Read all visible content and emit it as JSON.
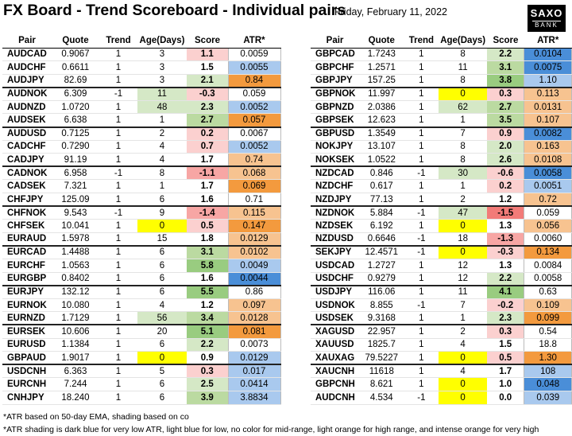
{
  "header": {
    "title": "FX Board - Trend Scoreboard - Individual pairs",
    "date": "Friday, February 11, 2022",
    "logo_line1": "SAXO",
    "logo_line2": "BANK"
  },
  "columns": [
    "Pair",
    "Quote",
    "Trend",
    "Age(Days)",
    "Score",
    "ATR*"
  ],
  "colors": {
    "age_green": "#d5e8c6",
    "age_yellow": "#ffff00",
    "score_green_light": "#d5e8c6",
    "score_green_mid": "#bbdaa1",
    "score_green_strong": "#99cc80",
    "score_red_light": "#fbd0cf",
    "score_red_mid": "#f7a6a4",
    "score_red_strong": "#f27b78",
    "atr_dark_blue": "#4a8ed8",
    "atr_light_blue": "#a9c9ee",
    "atr_light_orange": "#f7c390",
    "atr_intense_orange": "#f39a3e"
  },
  "left_rows": [
    {
      "pair": "AUDCAD",
      "quote": "0.9067",
      "trend": "1",
      "age": "3",
      "score": "1.1",
      "atr": "0.0059",
      "age_c": "",
      "score_c": "#fbd0cf",
      "atr_c": "",
      "gs": false
    },
    {
      "pair": "AUDCHF",
      "quote": "0.6611",
      "trend": "1",
      "age": "3",
      "score": "1.5",
      "atr": "0.0055",
      "age_c": "",
      "score_c": "",
      "atr_c": "#a9c9ee",
      "gs": false
    },
    {
      "pair": "AUDJPY",
      "quote": "82.69",
      "trend": "1",
      "age": "3",
      "score": "2.1",
      "atr": "0.84",
      "age_c": "",
      "score_c": "#d5e8c6",
      "atr_c": "#f39a3e",
      "gs": false
    },
    {
      "pair": "AUDNOK",
      "quote": "6.309",
      "trend": "-1",
      "age": "11",
      "score": "-0.3",
      "atr": "0.059",
      "age_c": "#d5e8c6",
      "score_c": "#fbd0cf",
      "atr_c": "",
      "gs": true
    },
    {
      "pair": "AUDNZD",
      "quote": "1.0720",
      "trend": "1",
      "age": "48",
      "score": "2.3",
      "atr": "0.0052",
      "age_c": "#d5e8c6",
      "score_c": "#d5e8c6",
      "atr_c": "#a9c9ee",
      "gs": false
    },
    {
      "pair": "AUDSEK",
      "quote": "6.638",
      "trend": "1",
      "age": "1",
      "score": "2.7",
      "atr": "0.057",
      "age_c": "",
      "score_c": "#bbdaa1",
      "atr_c": "#f39a3e",
      "gs": false
    },
    {
      "pair": "AUDUSD",
      "quote": "0.7125",
      "trend": "1",
      "age": "2",
      "score": "0.2",
      "atr": "0.0067",
      "age_c": "",
      "score_c": "#fbd0cf",
      "atr_c": "",
      "gs": true
    },
    {
      "pair": "CADCHF",
      "quote": "0.7290",
      "trend": "1",
      "age": "4",
      "score": "0.7",
      "atr": "0.0052",
      "age_c": "",
      "score_c": "#fbd0cf",
      "atr_c": "#a9c9ee",
      "gs": false
    },
    {
      "pair": "CADJPY",
      "quote": "91.19",
      "trend": "1",
      "age": "4",
      "score": "1.7",
      "atr": "0.74",
      "age_c": "",
      "score_c": "",
      "atr_c": "#f7c390",
      "gs": false
    },
    {
      "pair": "CADNOK",
      "quote": "6.958",
      "trend": "-1",
      "age": "8",
      "score": "-1.1",
      "atr": "0.068",
      "age_c": "",
      "score_c": "#f7a6a4",
      "atr_c": "#f7c390",
      "gs": true
    },
    {
      "pair": "CADSEK",
      "quote": "7.321",
      "trend": "1",
      "age": "1",
      "score": "1.7",
      "atr": "0.069",
      "age_c": "",
      "score_c": "",
      "atr_c": "#f39a3e",
      "gs": false
    },
    {
      "pair": "CHFJPY",
      "quote": "125.09",
      "trend": "1",
      "age": "6",
      "score": "1.6",
      "atr": "0.71",
      "age_c": "",
      "score_c": "",
      "atr_c": "",
      "gs": false
    },
    {
      "pair": "CHFNOK",
      "quote": "9.543",
      "trend": "-1",
      "age": "9",
      "score": "-1.4",
      "atr": "0.115",
      "age_c": "",
      "score_c": "#f7a6a4",
      "atr_c": "#f7c390",
      "gs": true
    },
    {
      "pair": "CHFSEK",
      "quote": "10.041",
      "trend": "1",
      "age": "0",
      "score": "0.5",
      "atr": "0.147",
      "age_c": "#ffff00",
      "score_c": "#fbd0cf",
      "atr_c": "#f39a3e",
      "gs": false
    },
    {
      "pair": "EURAUD",
      "quote": "1.5978",
      "trend": "1",
      "age": "15",
      "score": "1.8",
      "atr": "0.0129",
      "age_c": "",
      "score_c": "",
      "atr_c": "#f7c390",
      "gs": false
    },
    {
      "pair": "EURCAD",
      "quote": "1.4488",
      "trend": "1",
      "age": "6",
      "score": "3.1",
      "atr": "0.0102",
      "age_c": "",
      "score_c": "#bbdaa1",
      "atr_c": "#f7c390",
      "gs": true
    },
    {
      "pair": "EURCHF",
      "quote": "1.0563",
      "trend": "1",
      "age": "6",
      "score": "5.8",
      "atr": "0.0049",
      "age_c": "",
      "score_c": "#99cc80",
      "atr_c": "#a9c9ee",
      "gs": false
    },
    {
      "pair": "EURGBP",
      "quote": "0.8402",
      "trend": "1",
      "age": "6",
      "score": "1.6",
      "atr": "0.0044",
      "age_c": "",
      "score_c": "",
      "atr_c": "#4a8ed8",
      "gs": false
    },
    {
      "pair": "EURJPY",
      "quote": "132.12",
      "trend": "1",
      "age": "6",
      "score": "5.5",
      "atr": "0.86",
      "age_c": "",
      "score_c": "#99cc80",
      "atr_c": "",
      "gs": true
    },
    {
      "pair": "EURNOK",
      "quote": "10.080",
      "trend": "1",
      "age": "4",
      "score": "1.2",
      "atr": "0.097",
      "age_c": "",
      "score_c": "",
      "atr_c": "#f7c390",
      "gs": false
    },
    {
      "pair": "EURNZD",
      "quote": "1.7129",
      "trend": "1",
      "age": "56",
      "score": "3.4",
      "atr": "0.0128",
      "age_c": "#d5e8c6",
      "score_c": "#bbdaa1",
      "atr_c": "#f7c390",
      "gs": false
    },
    {
      "pair": "EURSEK",
      "quote": "10.606",
      "trend": "1",
      "age": "20",
      "score": "5.1",
      "atr": "0.081",
      "age_c": "",
      "score_c": "#99cc80",
      "atr_c": "#f39a3e",
      "gs": true
    },
    {
      "pair": "EURUSD",
      "quote": "1.1384",
      "trend": "1",
      "age": "6",
      "score": "2.2",
      "atr": "0.0073",
      "age_c": "",
      "score_c": "#d5e8c6",
      "atr_c": "",
      "gs": false
    },
    {
      "pair": "GBPAUD",
      "quote": "1.9017",
      "trend": "1",
      "age": "0",
      "score": "0.9",
      "atr": "0.0129",
      "age_c": "#ffff00",
      "score_c": "",
      "atr_c": "#a9c9ee",
      "gs": false
    },
    {
      "pair": "USDCNH",
      "quote": "6.363",
      "trend": "1",
      "age": "5",
      "score": "0.3",
      "atr": "0.017",
      "age_c": "",
      "score_c": "#fbd0cf",
      "atr_c": "#a9c9ee",
      "gs": true
    },
    {
      "pair": "EURCNH",
      "quote": "7.244",
      "trend": "1",
      "age": "6",
      "score": "2.5",
      "atr": "0.0414",
      "age_c": "",
      "score_c": "#d5e8c6",
      "atr_c": "#a9c9ee",
      "gs": false
    },
    {
      "pair": "CNHJPY",
      "quote": "18.240",
      "trend": "1",
      "age": "6",
      "score": "3.9",
      "atr": "3.8834",
      "age_c": "",
      "score_c": "#bbdaa1",
      "atr_c": "#a9c9ee",
      "gs": false
    }
  ],
  "right_rows": [
    {
      "pair": "GBPCAD",
      "quote": "1.7243",
      "trend": "1",
      "age": "8",
      "score": "2.2",
      "atr": "0.0104",
      "age_c": "",
      "score_c": "#d5e8c6",
      "atr_c": "#4a8ed8",
      "gs": false
    },
    {
      "pair": "GBPCHF",
      "quote": "1.2571",
      "trend": "1",
      "age": "11",
      "score": "3.1",
      "atr": "0.0075",
      "age_c": "",
      "score_c": "#bbdaa1",
      "atr_c": "#4a8ed8",
      "gs": false
    },
    {
      "pair": "GBPJPY",
      "quote": "157.25",
      "trend": "1",
      "age": "8",
      "score": "3.8",
      "atr": "1.10",
      "age_c": "",
      "score_c": "#99cc80",
      "atr_c": "#a9c9ee",
      "gs": false
    },
    {
      "pair": "GBPNOK",
      "quote": "11.997",
      "trend": "1",
      "age": "0",
      "score": "0.3",
      "atr": "0.113",
      "age_c": "#ffff00",
      "score_c": "#fbd0cf",
      "atr_c": "#f7c390",
      "gs": true
    },
    {
      "pair": "GBPNZD",
      "quote": "2.0386",
      "trend": "1",
      "age": "62",
      "score": "2.7",
      "atr": "0.0131",
      "age_c": "#d5e8c6",
      "score_c": "#bbdaa1",
      "atr_c": "#f7c390",
      "gs": false
    },
    {
      "pair": "GBPSEK",
      "quote": "12.623",
      "trend": "1",
      "age": "1",
      "score": "3.5",
      "atr": "0.107",
      "age_c": "",
      "score_c": "#bbdaa1",
      "atr_c": "#f7c390",
      "gs": false
    },
    {
      "pair": "GBPUSD",
      "quote": "1.3549",
      "trend": "1",
      "age": "7",
      "score": "0.9",
      "atr": "0.0082",
      "age_c": "",
      "score_c": "#fbd0cf",
      "atr_c": "#4a8ed8",
      "gs": true
    },
    {
      "pair": "NOKJPY",
      "quote": "13.107",
      "trend": "1",
      "age": "8",
      "score": "2.0",
      "atr": "0.163",
      "age_c": "",
      "score_c": "#d5e8c6",
      "atr_c": "#f7c390",
      "gs": false
    },
    {
      "pair": "NOKSEK",
      "quote": "1.0522",
      "trend": "1",
      "age": "8",
      "score": "2.6",
      "atr": "0.0108",
      "age_c": "",
      "score_c": "#d5e8c6",
      "atr_c": "#f7c390",
      "gs": false
    },
    {
      "pair": "NZDCAD",
      "quote": "0.846",
      "trend": "-1",
      "age": "30",
      "score": "-0.6",
      "atr": "0.0058",
      "age_c": "#d5e8c6",
      "score_c": "#fbd0cf",
      "atr_c": "#4a8ed8",
      "gs": true
    },
    {
      "pair": "NZDCHF",
      "quote": "0.617",
      "trend": "1",
      "age": "1",
      "score": "0.2",
      "atr": "0.0051",
      "age_c": "",
      "score_c": "#fbd0cf",
      "atr_c": "#a9c9ee",
      "gs": false
    },
    {
      "pair": "NZDJPY",
      "quote": "77.13",
      "trend": "1",
      "age": "2",
      "score": "1.2",
      "atr": "0.72",
      "age_c": "",
      "score_c": "",
      "atr_c": "#f7c390",
      "gs": false
    },
    {
      "pair": "NZDNOK",
      "quote": "5.884",
      "trend": "-1",
      "age": "47",
      "score": "-1.5",
      "atr": "0.059",
      "age_c": "#d5e8c6",
      "score_c": "#f27b78",
      "atr_c": "",
      "gs": true
    },
    {
      "pair": "NZDSEK",
      "quote": "6.192",
      "trend": "1",
      "age": "0",
      "score": "1.3",
      "atr": "0.056",
      "age_c": "#ffff00",
      "score_c": "",
      "atr_c": "#f7c390",
      "gs": false
    },
    {
      "pair": "NZDUSD",
      "quote": "0.6646",
      "trend": "-1",
      "age": "18",
      "score": "-1.3",
      "atr": "0.0060",
      "age_c": "",
      "score_c": "#f7a6a4",
      "atr_c": "",
      "gs": false
    },
    {
      "pair": "SEKJPY",
      "quote": "12.4571",
      "trend": "-1",
      "age": "0",
      "score": "-0.3",
      "atr": "0.134",
      "age_c": "#ffff00",
      "score_c": "#fbd0cf",
      "atr_c": "#f39a3e",
      "gs": true
    },
    {
      "pair": "USDCAD",
      "quote": "1.2727",
      "trend": "1",
      "age": "12",
      "score": "1.3",
      "atr": "0.0084",
      "age_c": "",
      "score_c": "",
      "atr_c": "",
      "gs": false
    },
    {
      "pair": "USDCHF",
      "quote": "0.9279",
      "trend": "1",
      "age": "12",
      "score": "2.2",
      "atr": "0.0058",
      "age_c": "",
      "score_c": "#d5e8c6",
      "atr_c": "",
      "gs": false
    },
    {
      "pair": "USDJPY",
      "quote": "116.06",
      "trend": "1",
      "age": "11",
      "score": "4.1",
      "atr": "0.63",
      "age_c": "",
      "score_c": "#99cc80",
      "atr_c": "",
      "gs": true
    },
    {
      "pair": "USDNOK",
      "quote": "8.855",
      "trend": "-1",
      "age": "7",
      "score": "-0.2",
      "atr": "0.109",
      "age_c": "",
      "score_c": "#fbd0cf",
      "atr_c": "#f7c390",
      "gs": false
    },
    {
      "pair": "USDSEK",
      "quote": "9.3168",
      "trend": "1",
      "age": "1",
      "score": "2.3",
      "atr": "0.099",
      "age_c": "",
      "score_c": "#d5e8c6",
      "atr_c": "#f39a3e",
      "gs": false
    },
    {
      "pair": "XAGUSD",
      "quote": "22.957",
      "trend": "1",
      "age": "2",
      "score": "0.3",
      "atr": "0.54",
      "age_c": "",
      "score_c": "#fbd0cf",
      "atr_c": "",
      "gs": true
    },
    {
      "pair": "XAUUSD",
      "quote": "1825.7",
      "trend": "1",
      "age": "4",
      "score": "1.5",
      "atr": "18.8",
      "age_c": "",
      "score_c": "",
      "atr_c": "",
      "gs": false
    },
    {
      "pair": "XAUXAG",
      "quote": "79.5227",
      "trend": "1",
      "age": "0",
      "score": "0.5",
      "atr": "1.30",
      "age_c": "#ffff00",
      "score_c": "#fbd0cf",
      "atr_c": "#f39a3e",
      "gs": false
    },
    {
      "pair": "XAUCNH",
      "quote": "11618",
      "trend": "1",
      "age": "4",
      "score": "1.7",
      "atr": "108",
      "age_c": "",
      "score_c": "",
      "atr_c": "#a9c9ee",
      "gs": true
    },
    {
      "pair": "GBPCNH",
      "quote": "8.621",
      "trend": "1",
      "age": "0",
      "score": "1.0",
      "atr": "0.048",
      "age_c": "#ffff00",
      "score_c": "",
      "atr_c": "#4a8ed8",
      "gs": false
    },
    {
      "pair": "AUDCNH",
      "quote": "4.534",
      "trend": "-1",
      "age": "0",
      "score": "0.0",
      "atr": "0.039",
      "age_c": "#ffff00",
      "score_c": "",
      "atr_c": "#a9c9ee",
      "gs": false
    }
  ],
  "footnotes": [
    "*ATR based on 50-day EMA, shading based on co",
    "*ATR shading is dark blue for very low ATR, light blue for low, no color for mid-range, light orange for high range, and intense orange for very high"
  ]
}
